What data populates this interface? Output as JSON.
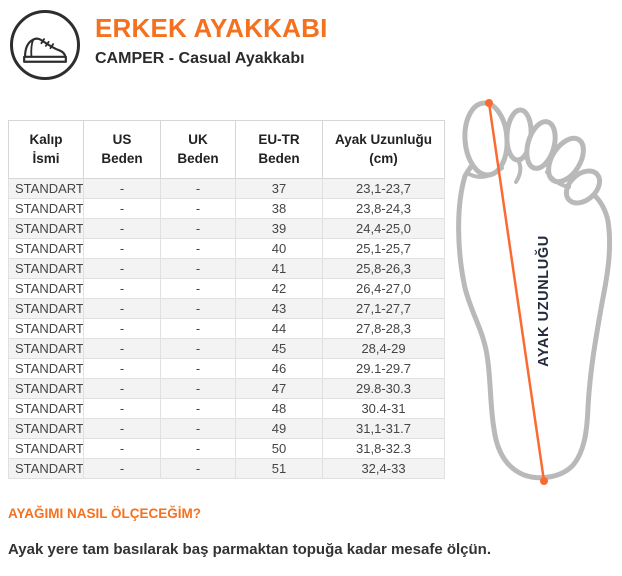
{
  "header": {
    "title": "ERKEK AYAKKABI",
    "subtitle": "CAMPER - Casual Ayakkabı"
  },
  "table": {
    "columns": [
      {
        "l1": "Kalıp",
        "l2": "İsmi"
      },
      {
        "l1": "US",
        "l2": "Beden"
      },
      {
        "l1": "UK",
        "l2": "Beden"
      },
      {
        "l1": "EU-TR",
        "l2": "Beden"
      },
      {
        "l1": "Ayak Uzunluğu",
        "l2": "(cm)"
      }
    ],
    "rows": [
      {
        "kalip": "STANDART",
        "us": "-",
        "uk": "-",
        "eu": "37",
        "cm": "23,1-23,7"
      },
      {
        "kalip": "STANDART",
        "us": "-",
        "uk": "-",
        "eu": "38",
        "cm": "23,8-24,3"
      },
      {
        "kalip": "STANDART",
        "us": "-",
        "uk": "-",
        "eu": "39",
        "cm": "24,4-25,0"
      },
      {
        "kalip": "STANDART",
        "us": "-",
        "uk": "-",
        "eu": "40",
        "cm": "25,1-25,7"
      },
      {
        "kalip": "STANDART",
        "us": "-",
        "uk": "-",
        "eu": "41",
        "cm": "25,8-26,3"
      },
      {
        "kalip": "STANDART",
        "us": "-",
        "uk": "-",
        "eu": "42",
        "cm": "26,4-27,0"
      },
      {
        "kalip": "STANDART",
        "us": "-",
        "uk": "-",
        "eu": "43",
        "cm": "27,1-27,7"
      },
      {
        "kalip": "STANDART",
        "us": "-",
        "uk": "-",
        "eu": "44",
        "cm": "27,8-28,3"
      },
      {
        "kalip": "STANDART",
        "us": "-",
        "uk": "-",
        "eu": "45",
        "cm": "28,4-29"
      },
      {
        "kalip": "STANDART",
        "us": "-",
        "uk": "-",
        "eu": "46",
        "cm": "29.1-29.7"
      },
      {
        "kalip": "STANDART",
        "us": "-",
        "uk": "-",
        "eu": "47",
        "cm": "29.8-30.3"
      },
      {
        "kalip": "STANDART",
        "us": "-",
        "uk": "-",
        "eu": "48",
        "cm": "30.4-31"
      },
      {
        "kalip": "STANDART",
        "us": "-",
        "uk": "-",
        "eu": "49",
        "cm": "31,1-31.7"
      },
      {
        "kalip": "STANDART",
        "us": "-",
        "uk": "-",
        "eu": "50",
        "cm": "31,8-32.3"
      },
      {
        "kalip": "STANDART",
        "us": "-",
        "uk": "-",
        "eu": "51",
        "cm": "32,4-33"
      }
    ]
  },
  "diagram": {
    "label": "AYAK UZUNLUĞU"
  },
  "how_to": {
    "heading": "AYAĞIMI NASIL ÖLÇECEĞİM?",
    "text": "Ayak yere tam basılarak baş parmaktan topuğa kadar mesafe ölçün."
  },
  "colors": {
    "accent_orange": "#f4711f",
    "measure_line_orange": "#fb6a31",
    "foot_outline_gray": "#b9b9b9",
    "label_navy": "#252b3d",
    "stripe_gray": "#f3f3f3"
  }
}
